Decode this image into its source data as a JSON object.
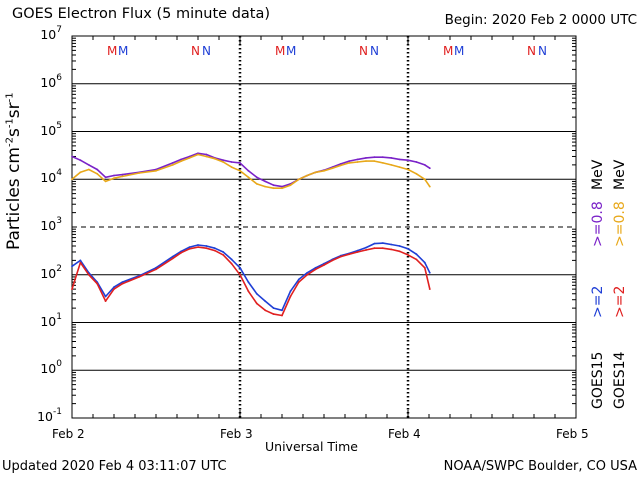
{
  "title": "GOES Electron Flux (5 minute data)",
  "begin": "Begin: 2020 Feb 2 0000 UTC",
  "updated": "Updated 2020 Feb  4 03:11:07 UTC",
  "credit": "NOAA/SWPC Boulder, CO USA",
  "colors": {
    "goes15_08": "#7a22c8",
    "goes14_08": "#e8a81a",
    "goes15_2": "#1f3fd6",
    "goes14_2": "#e02020"
  },
  "legend": {
    "goes15_label": "GOES15",
    "goes14_label": "GOES14",
    "goes15_08": ">=0.8",
    "goes14_08": ">=0.8",
    "mev_a": "MeV",
    "mev_b": "MeV",
    "goes15_2": ">=2",
    "goes14_2": ">=2"
  },
  "chart_data": {
    "type": "line",
    "title": "GOES Electron Flux (5 minute data)",
    "xlabel": "Universal Time",
    "ylabel": "Particles cm-2 s-1 sr-1",
    "y_scale": "log",
    "ylim": [
      0.1,
      10000000
    ],
    "xlim_days": [
      0,
      3
    ],
    "x_ticks": [
      "Feb 2",
      "Feb 3",
      "Feb 4",
      "Feb 5"
    ],
    "y_tick_exponents": [
      7,
      6,
      5,
      4,
      3,
      2,
      1,
      0,
      -1
    ],
    "alert_threshold_exponent": 3,
    "markers": {
      "M": {
        "label": "M",
        "days": [
          0.28,
          1.28,
          2.28
        ]
      },
      "N": {
        "label": "N",
        "days": [
          0.78,
          1.78,
          2.78
        ]
      }
    },
    "series": [
      {
        "name": "GOES15 >=0.8 MeV",
        "color": "#7a22c8",
        "x": [
          0.0,
          0.05,
          0.1,
          0.15,
          0.2,
          0.25,
          0.3,
          0.4,
          0.5,
          0.6,
          0.65,
          0.7,
          0.75,
          0.8,
          0.85,
          0.9,
          0.95,
          1.0,
          1.05,
          1.1,
          1.15,
          1.2,
          1.25,
          1.3,
          1.35,
          1.4,
          1.45,
          1.5,
          1.55,
          1.6,
          1.65,
          1.7,
          1.75,
          1.8,
          1.85,
          1.9,
          1.95,
          2.0,
          2.05,
          2.1,
          2.13
        ],
        "values": [
          30000,
          25000,
          20000,
          16000,
          11000,
          12000,
          12500,
          14000,
          16000,
          22000,
          26000,
          30000,
          35000,
          33000,
          28000,
          25000,
          23000,
          22000,
          15000,
          11000,
          9000,
          7500,
          7000,
          8000,
          10000,
          12000,
          14000,
          15500,
          18000,
          21000,
          24000,
          26000,
          28000,
          29000,
          29000,
          28000,
          26000,
          25000,
          23000,
          20000,
          17000
        ]
      },
      {
        "name": "GOES14 >=0.8 MeV",
        "color": "#e8a81a",
        "x": [
          0.0,
          0.05,
          0.1,
          0.15,
          0.2,
          0.25,
          0.3,
          0.4,
          0.5,
          0.6,
          0.65,
          0.7,
          0.75,
          0.8,
          0.85,
          0.9,
          0.95,
          1.0,
          1.05,
          1.1,
          1.15,
          1.2,
          1.25,
          1.3,
          1.35,
          1.4,
          1.45,
          1.5,
          1.55,
          1.6,
          1.65,
          1.7,
          1.75,
          1.8,
          1.85,
          1.9,
          1.95,
          2.0,
          2.05,
          2.1,
          2.13
        ],
        "values": [
          10000,
          14000,
          16000,
          13000,
          9000,
          10500,
          11500,
          13500,
          15000,
          20000,
          24000,
          28000,
          33000,
          30000,
          27000,
          23000,
          18000,
          15000,
          11000,
          8000,
          7000,
          6500,
          6500,
          7500,
          10000,
          12000,
          14000,
          15000,
          17000,
          19500,
          22000,
          23000,
          24000,
          24000,
          22000,
          20000,
          18000,
          16000,
          13000,
          10000,
          7000
        ]
      },
      {
        "name": "GOES15 >=2 MeV",
        "color": "#1f3fd6",
        "x": [
          0.0,
          0.05,
          0.1,
          0.15,
          0.2,
          0.25,
          0.3,
          0.4,
          0.5,
          0.6,
          0.65,
          0.7,
          0.75,
          0.8,
          0.85,
          0.9,
          0.95,
          1.0,
          1.05,
          1.1,
          1.15,
          1.2,
          1.25,
          1.3,
          1.35,
          1.4,
          1.45,
          1.5,
          1.55,
          1.6,
          1.65,
          1.7,
          1.75,
          1.8,
          1.85,
          1.9,
          1.95,
          2.0,
          2.05,
          2.1,
          2.13
        ],
        "values": [
          150,
          200,
          110,
          70,
          35,
          55,
          70,
          95,
          140,
          240,
          310,
          380,
          420,
          400,
          360,
          300,
          210,
          140,
          70,
          40,
          28,
          20,
          18,
          45,
          80,
          110,
          140,
          170,
          210,
          250,
          280,
          320,
          370,
          450,
          460,
          430,
          400,
          350,
          270,
          180,
          110
        ]
      },
      {
        "name": "GOES14 >=2 MeV",
        "color": "#e02020",
        "x": [
          0.0,
          0.05,
          0.1,
          0.15,
          0.2,
          0.25,
          0.3,
          0.4,
          0.5,
          0.6,
          0.65,
          0.7,
          0.75,
          0.8,
          0.85,
          0.9,
          0.95,
          1.0,
          1.05,
          1.1,
          1.15,
          1.2,
          1.25,
          1.3,
          1.35,
          1.4,
          1.45,
          1.5,
          1.55,
          1.6,
          1.65,
          1.7,
          1.75,
          1.8,
          1.85,
          1.9,
          1.95,
          2.0,
          2.05,
          2.1,
          2.13
        ],
        "values": [
          50,
          180,
          100,
          65,
          28,
          50,
          65,
          90,
          130,
          220,
          290,
          350,
          380,
          360,
          320,
          260,
          170,
          100,
          45,
          25,
          18,
          15,
          14,
          35,
          70,
          100,
          130,
          160,
          200,
          240,
          270,
          300,
          330,
          360,
          360,
          340,
          310,
          260,
          210,
          140,
          50
        ]
      }
    ]
  }
}
